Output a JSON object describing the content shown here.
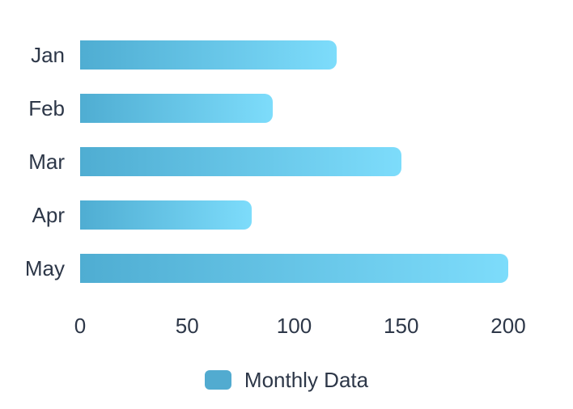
{
  "chart_data": {
    "type": "bar",
    "orientation": "horizontal",
    "title": "",
    "xlabel": "",
    "ylabel": "",
    "categories": [
      "Jan",
      "Feb",
      "Mar",
      "Apr",
      "May"
    ],
    "series": [
      {
        "name": "Monthly Data",
        "values": [
          120,
          90,
          150,
          80,
          200
        ]
      }
    ],
    "xlim": [
      0,
      200
    ],
    "xticks": [
      0,
      50,
      100,
      150,
      200
    ],
    "grid": false,
    "legend_position": "bottom",
    "colors": {
      "bar_gradient_start": "#4fadd2",
      "bar_gradient_end": "#7ddcfb",
      "legend_swatch": "#52abd0",
      "text": "#2d3748",
      "background": "#ffffff"
    }
  },
  "legend": {
    "label": "Monthly Data"
  }
}
